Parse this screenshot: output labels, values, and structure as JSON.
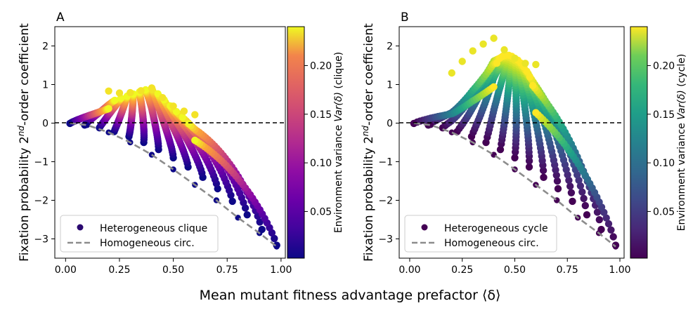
{
  "figure": {
    "shared_xlabel": "Mean mutant fitness advantage prefactor ⟨δ⟩"
  },
  "chart_data": [
    {
      "type": "scatter",
      "panel_label": "A",
      "ylabel": {
        "pre": "Fixation probability 2",
        "sup": "nd",
        "post": "-order coefficient"
      },
      "xlim": [
        -0.05,
        1.02
      ],
      "ylim": [
        -3.5,
        2.5
      ],
      "xticks": [
        0.0,
        0.25,
        0.5,
        0.75,
        1.0
      ],
      "xtick_labels": [
        "0.00",
        "0.25",
        "0.50",
        "0.75",
        "1.00"
      ],
      "yticks": [
        -3,
        -2,
        -1,
        0,
        1,
        2
      ],
      "ytick_labels": [
        "−3",
        "−2",
        "−1",
        "0",
        "1",
        "2"
      ],
      "reference_line_y": 0,
      "colormap": "plasma",
      "colorbar": {
        "label_pre": "Environment variance ",
        "label_var": "Var(δ)",
        "label_post": " (clique)",
        "range": [
          0.002,
          0.24
        ],
        "ticks": [
          0.05,
          0.1,
          0.15,
          0.2
        ],
        "tick_labels": [
          "0.05",
          "0.10",
          "0.15",
          "0.20"
        ]
      },
      "peak_envelope": [
        [
          0.2,
          0.83
        ],
        [
          0.25,
          0.78
        ],
        [
          0.3,
          0.79
        ],
        [
          0.35,
          0.84
        ],
        [
          0.4,
          0.91
        ],
        [
          0.45,
          0.66
        ],
        [
          0.5,
          0.44
        ],
        [
          0.55,
          0.31
        ],
        [
          0.6,
          0.22
        ]
      ],
      "lower_bound_points": [
        [
          0.02,
          0.0
        ],
        [
          0.1,
          -0.05
        ],
        [
          0.2,
          -0.24
        ],
        [
          0.3,
          -0.5
        ],
        [
          0.4,
          -0.82
        ],
        [
          0.5,
          -1.2
        ],
        [
          0.6,
          -1.6
        ],
        [
          0.7,
          -2.0
        ],
        [
          0.8,
          -2.45
        ],
        [
          0.9,
          -2.85
        ],
        [
          0.98,
          -3.2
        ]
      ],
      "homogeneous_curve": [
        [
          0.02,
          0.0
        ],
        [
          0.1,
          -0.05
        ],
        [
          0.2,
          -0.24
        ],
        [
          0.3,
          -0.5
        ],
        [
          0.4,
          -0.82
        ],
        [
          0.5,
          -1.2
        ],
        [
          0.6,
          -1.6
        ],
        [
          0.7,
          -2.0
        ],
        [
          0.8,
          -2.45
        ],
        [
          0.9,
          -2.85
        ],
        [
          0.98,
          -3.2
        ]
      ],
      "legend": {
        "placement": "lower-left",
        "entries": [
          {
            "label": "Heterogeneous clique",
            "kind": "marker",
            "color": "#2a0870"
          },
          {
            "label": "Homogeneous circ.",
            "kind": "dashed-line",
            "color": "#8c8c8c"
          }
        ]
      }
    },
    {
      "type": "scatter",
      "panel_label": "B",
      "ylabel": {
        "pre": "Fixation probability 2",
        "sup": "nd",
        "post": "-order coefficient"
      },
      "xlim": [
        -0.05,
        1.02
      ],
      "ylim": [
        -3.5,
        2.5
      ],
      "xticks": [
        0.0,
        0.25,
        0.5,
        0.75,
        1.0
      ],
      "xtick_labels": [
        "0.00",
        "0.25",
        "0.50",
        "0.75",
        "1.00"
      ],
      "yticks": [
        -3,
        -2,
        -1,
        0,
        1,
        2
      ],
      "ytick_labels": [
        "−3",
        "−2",
        "−1",
        "0",
        "1",
        "2"
      ],
      "reference_line_y": 0,
      "colormap": "viridis",
      "colorbar": {
        "label_pre": "Environment variance ",
        "label_var": "Var(δ)",
        "label_post": " (cycle)",
        "range": [
          0.002,
          0.24
        ],
        "ticks": [
          0.05,
          0.1,
          0.15,
          0.2
        ],
        "tick_labels": [
          "0.05",
          "0.10",
          "0.15",
          "0.20"
        ]
      },
      "peak_envelope": [
        [
          0.2,
          1.3
        ],
        [
          0.25,
          1.6
        ],
        [
          0.3,
          1.87
        ],
        [
          0.35,
          2.05
        ],
        [
          0.4,
          2.2
        ],
        [
          0.45,
          1.9
        ],
        [
          0.5,
          1.68
        ],
        [
          0.55,
          1.55
        ],
        [
          0.6,
          1.52
        ]
      ],
      "lower_bound_points": [
        [
          0.02,
          0.0
        ],
        [
          0.1,
          -0.05
        ],
        [
          0.2,
          -0.24
        ],
        [
          0.3,
          -0.5
        ],
        [
          0.4,
          -0.82
        ],
        [
          0.5,
          -1.2
        ],
        [
          0.6,
          -1.6
        ],
        [
          0.7,
          -2.0
        ],
        [
          0.8,
          -2.45
        ],
        [
          0.9,
          -2.85
        ],
        [
          0.98,
          -3.2
        ]
      ],
      "homogeneous_curve": [
        [
          0.02,
          0.0
        ],
        [
          0.1,
          -0.05
        ],
        [
          0.2,
          -0.24
        ],
        [
          0.3,
          -0.5
        ],
        [
          0.4,
          -0.82
        ],
        [
          0.5,
          -1.2
        ],
        [
          0.6,
          -1.6
        ],
        [
          0.7,
          -2.0
        ],
        [
          0.8,
          -2.45
        ],
        [
          0.9,
          -2.85
        ],
        [
          0.98,
          -3.2
        ]
      ],
      "legend": {
        "placement": "lower-left",
        "entries": [
          {
            "label": "Heterogeneous cycle",
            "kind": "marker",
            "color": "#440154"
          },
          {
            "label": "Homogeneous circ.",
            "kind": "dashed-line",
            "color": "#8c8c8c"
          }
        ]
      }
    }
  ]
}
